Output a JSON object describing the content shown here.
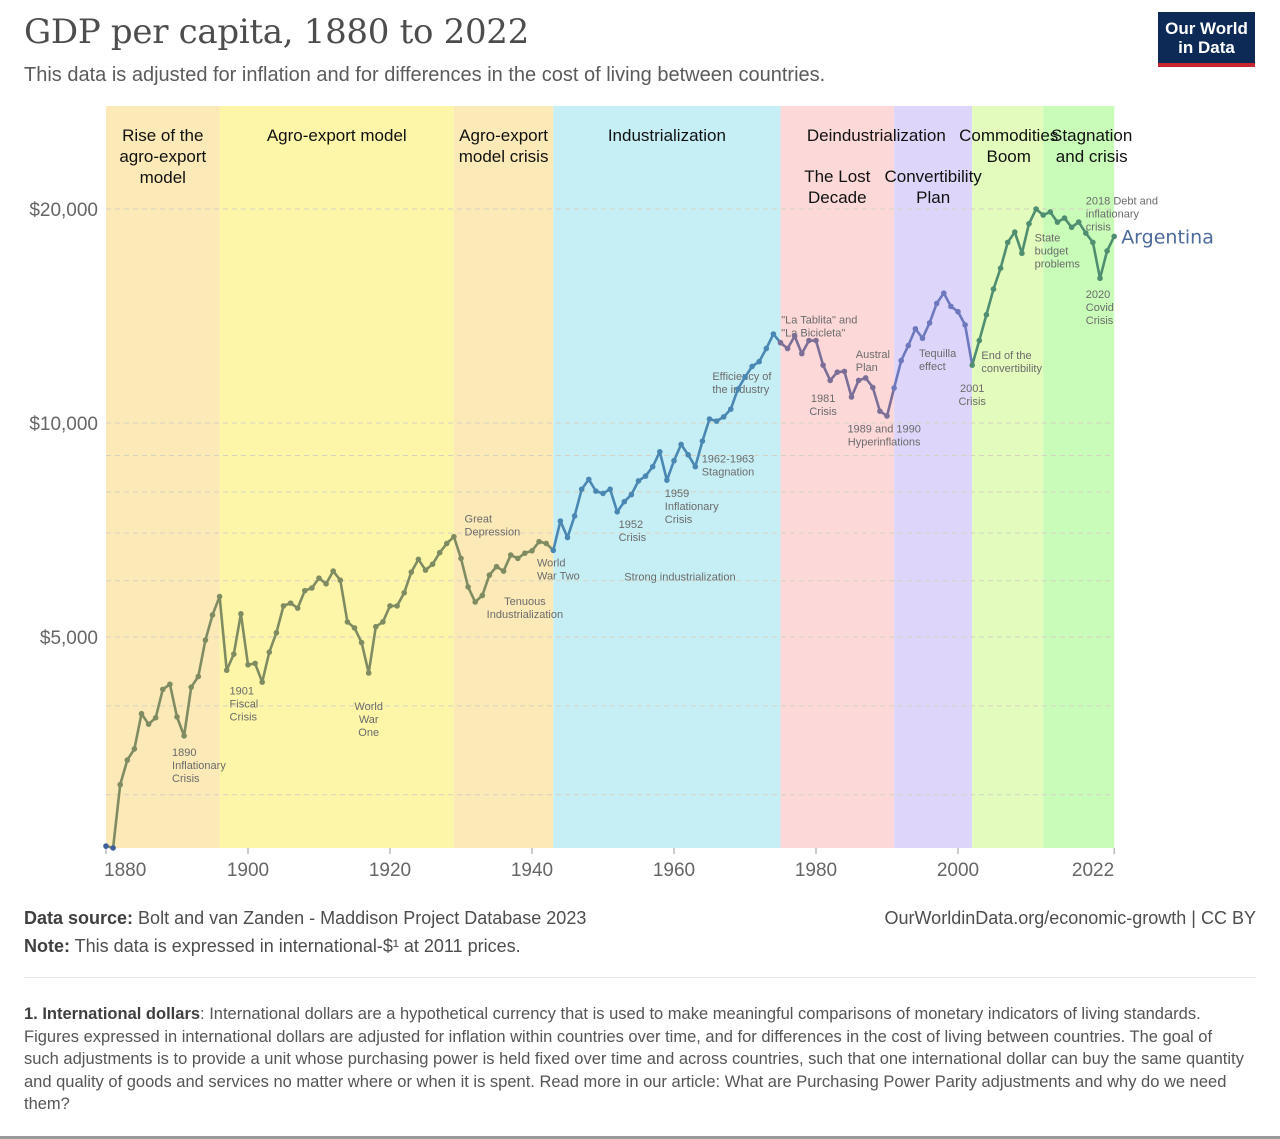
{
  "header": {
    "title": "GDP per capita, 1880 to 2022",
    "subtitle": "This data is adjusted for inflation and for differences in the cost of living between countries.",
    "logo_line1": "Our World",
    "logo_line2": "in Data"
  },
  "chart_data": {
    "type": "line",
    "title": "GDP per capita, 1880 to 2022",
    "xlabel": "",
    "ylabel": "",
    "yscale": "log",
    "ylim": [
      2500,
      24000
    ],
    "xlim": [
      1880,
      2022
    ],
    "grid": true,
    "y_ticks": [
      {
        "value": 20000,
        "label": "$20,000"
      },
      {
        "value": 10000,
        "label": "$10,000"
      },
      {
        "value": 5000,
        "label": "$5,000"
      }
    ],
    "y_minor_gridlines": [
      3000,
      4000,
      6000,
      7000,
      8000,
      9000
    ],
    "x_ticks": [
      1880,
      1900,
      1920,
      1940,
      1960,
      1980,
      2000,
      2022
    ],
    "series": [
      {
        "name": "Argentina",
        "label_color": "#4c6a9c",
        "x": [
          1880,
          1881,
          1882,
          1883,
          1884,
          1885,
          1886,
          1887,
          1888,
          1889,
          1890,
          1891,
          1892,
          1893,
          1894,
          1895,
          1896,
          1897,
          1898,
          1899,
          1900,
          1901,
          1902,
          1903,
          1904,
          1905,
          1906,
          1907,
          1908,
          1909,
          1910,
          1911,
          1912,
          1913,
          1914,
          1915,
          1916,
          1917,
          1918,
          1919,
          1920,
          1921,
          1922,
          1923,
          1924,
          1925,
          1926,
          1927,
          1928,
          1929,
          1930,
          1931,
          1932,
          1933,
          1934,
          1935,
          1936,
          1937,
          1938,
          1939,
          1940,
          1941,
          1942,
          1943,
          1944,
          1945,
          1946,
          1947,
          1948,
          1949,
          1950,
          1951,
          1952,
          1953,
          1954,
          1955,
          1956,
          1957,
          1958,
          1959,
          1960,
          1961,
          1962,
          1963,
          1964,
          1965,
          1966,
          1967,
          1968,
          1969,
          1970,
          1971,
          1972,
          1973,
          1974,
          1975,
          1976,
          1977,
          1978,
          1979,
          1980,
          1981,
          1982,
          1983,
          1984,
          1985,
          1986,
          1987,
          1988,
          1989,
          1990,
          1991,
          1992,
          1993,
          1994,
          1995,
          1996,
          1997,
          1998,
          1999,
          2000,
          2001,
          2002,
          2003,
          2004,
          2005,
          2006,
          2007,
          2008,
          2009,
          2010,
          2011,
          2012,
          2013,
          2014,
          2015,
          2016,
          2017,
          2018,
          2019,
          2020,
          2021,
          2022
        ],
        "values": [
          2540,
          2525,
          3100,
          3356,
          3480,
          3900,
          3770,
          3850,
          4220,
          4290,
          3860,
          3630,
          4250,
          4400,
          4950,
          5370,
          5700,
          4490,
          4730,
          5390,
          4570,
          4590,
          4320,
          4760,
          5070,
          5530,
          5580,
          5490,
          5810,
          5860,
          6050,
          5940,
          6190,
          6010,
          5250,
          5150,
          4910,
          4450,
          5170,
          5250,
          5530,
          5530,
          5770,
          6170,
          6430,
          6210,
          6330,
          6570,
          6770,
          6920,
          6450,
          5880,
          5600,
          5720,
          6110,
          6280,
          6190,
          6520,
          6450,
          6560,
          6610,
          6810,
          6770,
          6620,
          7280,
          6900,
          7400,
          8070,
          8330,
          8020,
          7960,
          8070,
          7500,
          7750,
          7930,
          8290,
          8420,
          8680,
          9110,
          8310,
          8850,
          9330,
          9020,
          8680,
          9430,
          10130,
          10060,
          10200,
          10460,
          11160,
          11600,
          12010,
          12200,
          12730,
          13340,
          12970,
          12730,
          13250,
          12520,
          13060,
          13060,
          12060,
          11480,
          11790,
          11820,
          10880,
          11480,
          11570,
          11220,
          10390,
          10230,
          11200,
          12240,
          12850,
          13570,
          13160,
          13830,
          14730,
          15230,
          14590,
          14340,
          13740,
          12060,
          13060,
          14200,
          15430,
          16510,
          17950,
          18560,
          17330,
          19070,
          20000,
          19610,
          19810,
          19170,
          19420,
          18850,
          19170,
          18500,
          17950,
          15980,
          17460,
          18300
        ]
      }
    ],
    "periods": [
      {
        "label": "Rise of the agro-export model",
        "lines": [
          "Rise of the",
          "agro-export",
          "model"
        ],
        "start": 1880,
        "end": 1896,
        "color": "#fbe9b7",
        "line_color": "#7f8c62"
      },
      {
        "label": "Agro-export model",
        "lines": [
          "Agro-export model"
        ],
        "start": 1896,
        "end": 1929,
        "color": "#fdf6a9",
        "line_color": "#7f8c62"
      },
      {
        "label": "Agro-export model crisis",
        "lines": [
          "Agro-export",
          "model crisis"
        ],
        "start": 1929,
        "end": 1943,
        "color": "#fbe9b7",
        "line_color": "#7f8c62"
      },
      {
        "label": "Industrialization",
        "lines": [
          "Industrialization"
        ],
        "start": 1943,
        "end": 1975,
        "color": "#c6eff5",
        "line_color": "#4a87b2"
      },
      {
        "label": "Deindustrialization / The Lost Decade",
        "lines": [
          "The Lost",
          "Decade"
        ],
        "start": 1975,
        "end": 1991,
        "color": "#fdd8d8",
        "line_color": "#7b6f98"
      },
      {
        "label": "Convertibility Plan",
        "lines": [
          "Convertibility",
          "Plan"
        ],
        "start": 1991,
        "end": 2002,
        "color": "#ddd6fa",
        "line_color": "#6e79bd"
      },
      {
        "label": "Commodities Boom",
        "lines": [
          "Commodities",
          "Boom"
        ],
        "start": 2002,
        "end": 2012,
        "color": "#e3fcbd",
        "line_color": "#4f8e70"
      },
      {
        "label": "Stagnation and crisis",
        "lines": [
          "Stagnation",
          "and crisis"
        ],
        "start": 2012,
        "end": 2022,
        "color": "#c9fcb9",
        "line_color": "#4f8e70"
      }
    ],
    "overarching_label": {
      "text": "Deindustrialization",
      "start": 1975,
      "end": 2002
    },
    "annotations": [
      {
        "lines": [
          "1890",
          "Inflationary",
          "Crisis"
        ],
        "year": 1889.3,
        "value": 3400,
        "align": "start"
      },
      {
        "lines": [
          "1901",
          "Fiscal",
          "Crisis"
        ],
        "year": 1897.4,
        "value": 4150,
        "align": "start"
      },
      {
        "lines": [
          "World",
          "War",
          "One"
        ],
        "year": 1917,
        "value": 3950,
        "align": "middle"
      },
      {
        "lines": [
          "Great",
          "Depression"
        ],
        "year": 1930.5,
        "value": 7250,
        "align": "start"
      },
      {
        "lines": [
          "Tenuous",
          "Industrialization"
        ],
        "year": 1939,
        "value": 5550,
        "align": "middle"
      },
      {
        "lines": [
          "World",
          "War Two"
        ],
        "year": 1940.7,
        "value": 6280,
        "align": "start"
      },
      {
        "lines": [
          "Strong industrialization"
        ],
        "year": 1953,
        "value": 6000,
        "align": "start"
      },
      {
        "lines": [
          "1952",
          "Crisis"
        ],
        "year": 1952.2,
        "value": 7120,
        "align": "start"
      },
      {
        "lines": [
          "1959",
          "Inflationary",
          "Crisis"
        ],
        "year": 1958.7,
        "value": 7870,
        "align": "start"
      },
      {
        "lines": [
          "1962-1963",
          "Stagnation"
        ],
        "year": 1963.9,
        "value": 8800,
        "align": "start"
      },
      {
        "lines": [
          "Efficiency of",
          "the industry"
        ],
        "year": 1965.4,
        "value": 11500,
        "align": "start"
      },
      {
        "lines": [
          "\"La Tablita\" and",
          "\"La Bicicleta\""
        ],
        "year": 1975.1,
        "value": 13800,
        "align": "start"
      },
      {
        "lines": [
          "1981",
          "Crisis"
        ],
        "year": 1981,
        "value": 10700,
        "align": "middle"
      },
      {
        "lines": [
          "Austral",
          "Plan"
        ],
        "year": 1985.6,
        "value": 12350,
        "align": "start"
      },
      {
        "lines": [
          "1989 and 1990",
          "Hyperinflations"
        ],
        "year": 1989.6,
        "value": 9700,
        "align": "middle"
      },
      {
        "lines": [
          "Tequilla",
          "effect"
        ],
        "year": 1994.5,
        "value": 12380,
        "align": "start"
      },
      {
        "lines": [
          "2001",
          "Crisis"
        ],
        "year": 2002,
        "value": 11050,
        "align": "middle"
      },
      {
        "lines": [
          "End of the",
          "convertibility"
        ],
        "year": 2003.3,
        "value": 12300,
        "align": "start"
      },
      {
        "lines": [
          "State",
          "budget",
          "problems"
        ],
        "year": 2010.8,
        "value": 18000,
        "align": "start"
      },
      {
        "lines": [
          "2018 Debt and",
          "inflationary",
          "crisis"
        ],
        "year": 2018,
        "value": 20300,
        "align": "start"
      },
      {
        "lines": [
          "2020",
          "Covid",
          "Crisis"
        ],
        "year": 2018,
        "value": 15000,
        "align": "start"
      }
    ]
  },
  "footer": {
    "source_label": "Data source:",
    "source_text": " Bolt and van Zanden - Maddison Project Database 2023",
    "note_label": "Note:",
    "note_text": " This data is expressed in international-$¹ at 2011 prices.",
    "url_text": "OurWorldinData.org/economic-growth | CC BY"
  },
  "footnote": {
    "label": "1. International dollars",
    "text": ": International dollars are a hypothetical currency that is used to make meaningful comparisons of monetary indicators of living standards. Figures expressed in international dollars are adjusted for inflation within countries over time, and for differences in the cost of living between countries. The goal of such adjustments is to provide a unit whose purchasing power is held fixed over time and across countries, such that one international dollar can buy the same quantity and quality of goods and services no matter where or when it is spent. Read more in our article: What are Purchasing Power Parity adjustments and why do we need them?"
  }
}
